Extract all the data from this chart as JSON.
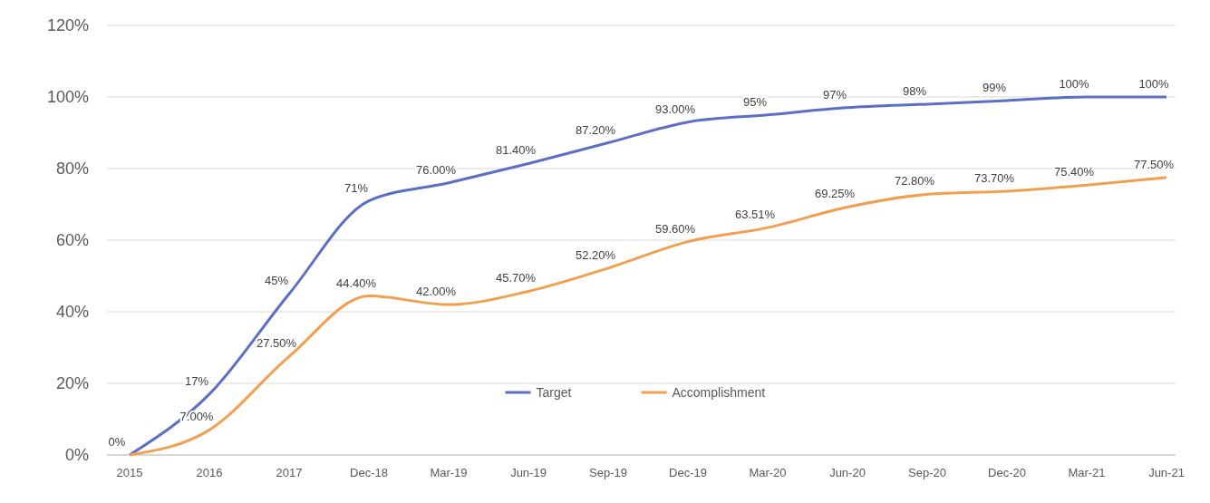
{
  "chart_data": {
    "type": "line",
    "categories": [
      "2015",
      "2016",
      "2017",
      "Dec-18",
      "Mar-19",
      "Jun-19",
      "Sep-19",
      "Dec-19",
      "Mar-20",
      "Jun-20",
      "Sep-20",
      "Dec-20",
      "Mar-21",
      "Jun-21"
    ],
    "series": [
      {
        "name": "Target",
        "color": "#5b6fc4",
        "values": [
          0,
          17,
          45,
          71,
          76,
          81.4,
          87.2,
          93,
          95,
          97,
          98,
          99,
          100,
          100
        ],
        "value_labels": [
          "0%",
          "17%",
          "45%",
          "71%",
          "76.00%",
          "81.40%",
          "87.20%",
          "93.00%",
          "95%",
          "97%",
          "98%",
          "99%",
          "100%",
          "100%"
        ]
      },
      {
        "name": "Accomplishment",
        "color": "#f0a050",
        "values": [
          0,
          7,
          27.5,
          44.4,
          42,
          45.7,
          52.2,
          59.6,
          63.51,
          69.25,
          72.8,
          73.7,
          75.4,
          77.5
        ],
        "value_labels": [
          null,
          "7.00%",
          "27.50%",
          "44.40%",
          "42.00%",
          "45.70%",
          "52.20%",
          "59.60%",
          "63.51%",
          "69.25%",
          "72.80%",
          "73.70%",
          "75.40%",
          "77.50%"
        ]
      }
    ],
    "ylim": [
      0,
      120
    ],
    "yticks": [
      {
        "value": 0,
        "label": "0%"
      },
      {
        "value": 20,
        "label": "20%"
      },
      {
        "value": 40,
        "label": "40%"
      },
      {
        "value": 60,
        "label": "60%"
      },
      {
        "value": 80,
        "label": "80%"
      },
      {
        "value": 100,
        "label": "100%"
      },
      {
        "value": 120,
        "label": "120%"
      }
    ],
    "grid": "y",
    "legend": "bottom",
    "marker": "none",
    "line_style": "solid"
  }
}
